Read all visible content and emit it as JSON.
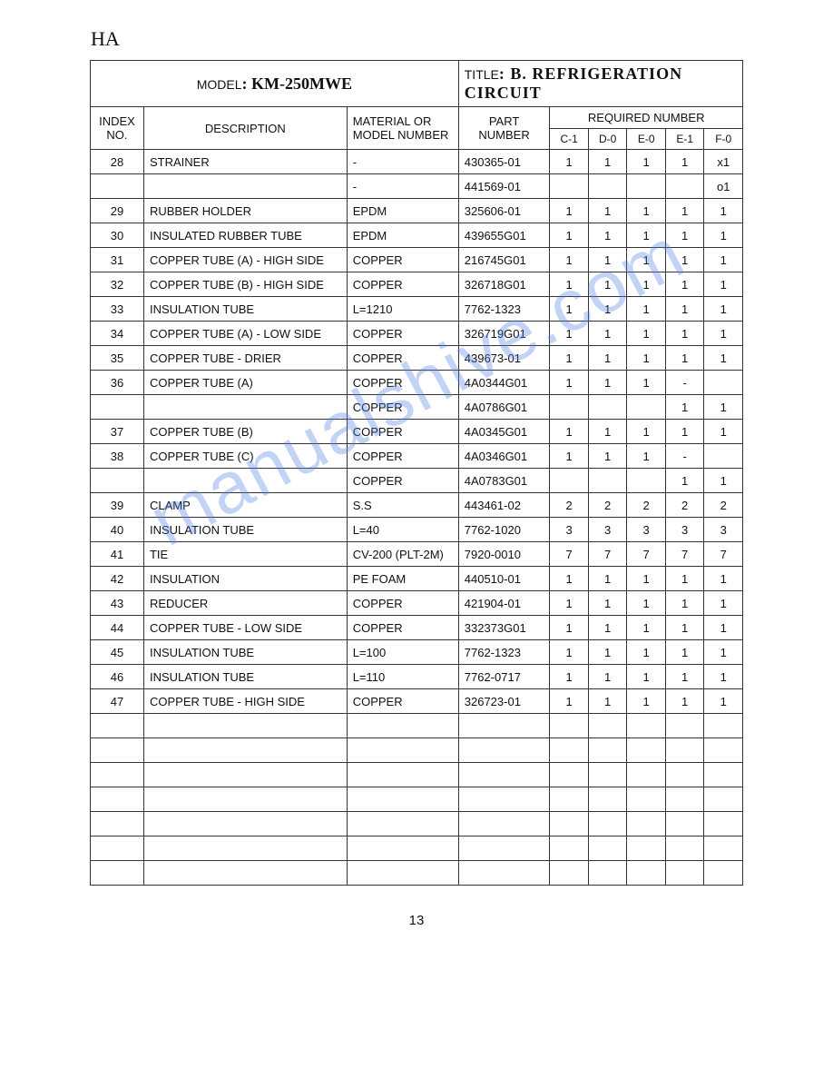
{
  "top_label": "HA",
  "header": {
    "model_label": "MODEL",
    "model_value": "KM-250MWE",
    "title_label": "TITLE",
    "title_value": "B.  REFRIGERATION  CIRCUIT"
  },
  "columns": {
    "index": "INDEX NO.",
    "desc": "DESCRIPTION",
    "material": "MATERIAL OR MODEL NUMBER",
    "part": "PART NUMBER",
    "required": "REQUIRED NUMBER",
    "sub": [
      "C-1",
      "D-0",
      "E-0",
      "E-1",
      "F-0"
    ]
  },
  "rows": [
    {
      "idx": "28",
      "desc": "STRAINER",
      "mat": "-",
      "part": "430365-01",
      "n": [
        "1",
        "1",
        "1",
        "1",
        "x1"
      ]
    },
    {
      "idx": "",
      "desc": "",
      "mat": "-",
      "part": "441569-01",
      "n": [
        "",
        "",
        "",
        "",
        "o1"
      ]
    },
    {
      "idx": "29",
      "desc": "RUBBER HOLDER",
      "mat": "EPDM",
      "part": "325606-01",
      "n": [
        "1",
        "1",
        "1",
        "1",
        "1"
      ]
    },
    {
      "idx": "30",
      "desc": "INSULATED RUBBER TUBE",
      "mat": "EPDM",
      "part": "439655G01",
      "n": [
        "1",
        "1",
        "1",
        "1",
        "1"
      ]
    },
    {
      "idx": "31",
      "desc": "COPPER TUBE (A) - HIGH SIDE",
      "mat": "COPPER",
      "part": "216745G01",
      "n": [
        "1",
        "1",
        "1",
        "1",
        "1"
      ]
    },
    {
      "idx": "32",
      "desc": "COPPER TUBE (B) - HIGH SIDE",
      "mat": "COPPER",
      "part": "326718G01",
      "n": [
        "1",
        "1",
        "1",
        "1",
        "1"
      ]
    },
    {
      "idx": "33",
      "desc": "INSULATION TUBE",
      "mat": "L=1210",
      "part": "7762-1323",
      "n": [
        "1",
        "1",
        "1",
        "1",
        "1"
      ]
    },
    {
      "idx": "34",
      "desc": "COPPER TUBE (A) - LOW SIDE",
      "mat": "COPPER",
      "part": "326719G01",
      "n": [
        "1",
        "1",
        "1",
        "1",
        "1"
      ]
    },
    {
      "idx": "35",
      "desc": "COPPER TUBE - DRIER",
      "mat": "COPPER",
      "part": "439673-01",
      "n": [
        "1",
        "1",
        "1",
        "1",
        "1"
      ]
    },
    {
      "idx": "36",
      "desc": "COPPER TUBE (A)",
      "mat": "COPPER",
      "part": "4A0344G01",
      "n": [
        "1",
        "1",
        "1",
        "-",
        ""
      ]
    },
    {
      "idx": "",
      "desc": "",
      "mat": "COPPER",
      "part": "4A0786G01",
      "n": [
        "",
        "",
        "",
        "1",
        "1"
      ]
    },
    {
      "idx": "37",
      "desc": "COPPER TUBE (B)",
      "mat": "COPPER",
      "part": "4A0345G01",
      "n": [
        "1",
        "1",
        "1",
        "1",
        "1"
      ]
    },
    {
      "idx": "38",
      "desc": "COPPER TUBE (C)",
      "mat": "COPPER",
      "part": "4A0346G01",
      "n": [
        "1",
        "1",
        "1",
        "-",
        ""
      ]
    },
    {
      "idx": "",
      "desc": "",
      "mat": "COPPER",
      "part": "4A0783G01",
      "n": [
        "",
        "",
        "",
        "1",
        "1"
      ]
    },
    {
      "idx": "39",
      "desc": "CLAMP",
      "mat": "S.S",
      "part": "443461-02",
      "n": [
        "2",
        "2",
        "2",
        "2",
        "2"
      ]
    },
    {
      "idx": "40",
      "desc": "INSULATION TUBE",
      "mat": "L=40",
      "part": "7762-1020",
      "n": [
        "3",
        "3",
        "3",
        "3",
        "3"
      ]
    },
    {
      "idx": "41",
      "desc": "TIE",
      "mat": "CV-200 (PLT-2M)",
      "part": "7920-0010",
      "n": [
        "7",
        "7",
        "7",
        "7",
        "7"
      ]
    },
    {
      "idx": "42",
      "desc": "INSULATION",
      "mat": "PE FOAM",
      "part": "440510-01",
      "n": [
        "1",
        "1",
        "1",
        "1",
        "1"
      ]
    },
    {
      "idx": "43",
      "desc": "REDUCER",
      "mat": "COPPER",
      "part": "421904-01",
      "n": [
        "1",
        "1",
        "1",
        "1",
        "1"
      ]
    },
    {
      "idx": "44",
      "desc": "COPPER TUBE - LOW SIDE",
      "mat": "COPPER",
      "part": "332373G01",
      "n": [
        "1",
        "1",
        "1",
        "1",
        "1"
      ]
    },
    {
      "idx": "45",
      "desc": "INSULATION TUBE",
      "mat": "L=100",
      "part": "7762-1323",
      "n": [
        "1",
        "1",
        "1",
        "1",
        "1"
      ]
    },
    {
      "idx": "46",
      "desc": "INSULATION TUBE",
      "mat": "L=110",
      "part": "7762-0717",
      "n": [
        "1",
        "1",
        "1",
        "1",
        "1"
      ]
    },
    {
      "idx": "47",
      "desc": "COPPER TUBE - HIGH SIDE",
      "mat": "COPPER",
      "part": "326723-01",
      "n": [
        "1",
        "1",
        "1",
        "1",
        "1"
      ]
    }
  ],
  "empty_rows": 7,
  "page_number": "13",
  "watermark": "manualshive.com"
}
